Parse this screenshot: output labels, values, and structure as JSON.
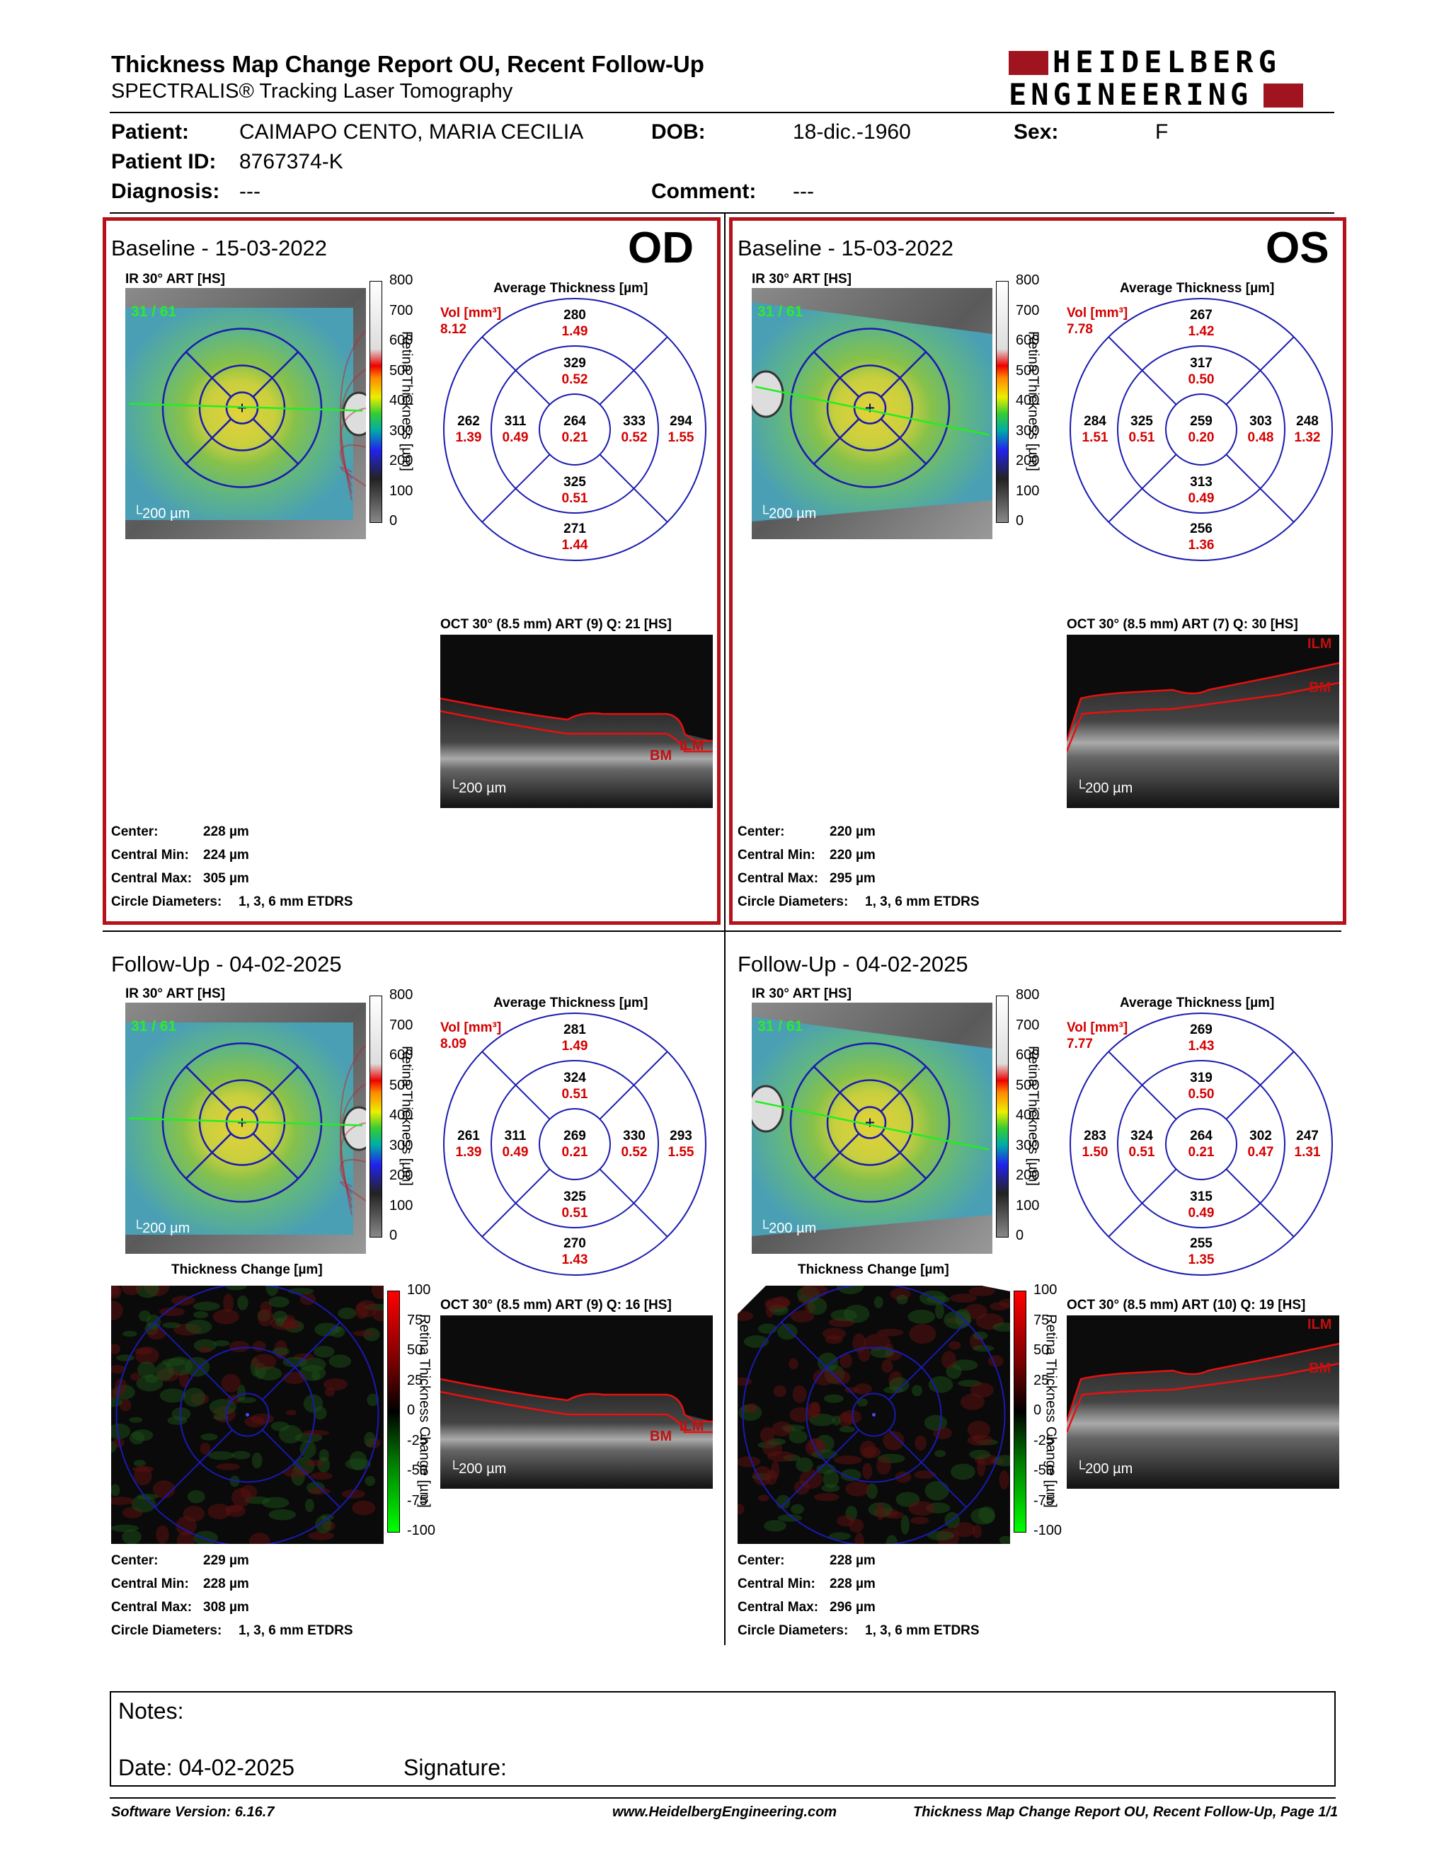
{
  "header": {
    "title": "Thickness Map Change Report OU, Recent Follow-Up",
    "subtitle": "SPECTRALIS® Tracking Laser Tomography",
    "logo_line1": "HEIDELBERG",
    "logo_line2": "ENGINEERING"
  },
  "patient": {
    "patient_label": "Patient:",
    "patient_value": "CAIMAPO CENTO, MARIA CECILIA",
    "dob_label": "DOB:",
    "dob_value": "18-dic.-1960",
    "sex_label": "Sex:",
    "sex_value": "F",
    "id_label": "Patient ID:",
    "id_value": "8767374-K",
    "diagnosis_label": "Diagnosis:",
    "diagnosis_value": "---",
    "comment_label": "Comment:",
    "comment_value": "---"
  },
  "panels": {
    "od_base": {
      "eye": "OD",
      "title": "Baseline - 15-03-2022",
      "ir_label": "IR 30° ART [HS]",
      "frame_count": "31 / 61",
      "scale": "200 µm",
      "avg_title": "Average Thickness [µm]",
      "vol_label": "Vol [mm³]",
      "vol": "8.12",
      "s": {
        "outer_sup": [
          "280",
          "1.49"
        ],
        "inner_sup": [
          "329",
          "0.52"
        ],
        "outer_left": [
          "262",
          "1.39"
        ],
        "inner_left": [
          "311",
          "0.49"
        ],
        "center": [
          "264",
          "0.21"
        ],
        "inner_right": [
          "333",
          "0.52"
        ],
        "outer_right": [
          "294",
          "1.55"
        ],
        "inner_inf": [
          "325",
          "0.51"
        ],
        "outer_inf": [
          "271",
          "1.44"
        ]
      },
      "oct_label": "OCT 30° (8.5 mm) ART (9) Q: 21 [HS]",
      "ilm": "ILM",
      "bm": "BM",
      "stats": {
        "center_label": "Center:",
        "center": "228 µm",
        "min_label": "Central Min:",
        "min": "224 µm",
        "max_label": "Central Max:",
        "max": "305 µm",
        "circ_label": "Circle Diameters:",
        "circ": "1, 3, 6 mm ETDRS"
      }
    },
    "os_base": {
      "eye": "OS",
      "title": "Baseline - 15-03-2022",
      "ir_label": "IR 30° ART [HS]",
      "frame_count": "31 / 61",
      "scale": "200 µm",
      "avg_title": "Average Thickness [µm]",
      "vol_label": "Vol [mm³]",
      "vol": "7.78",
      "s": {
        "outer_sup": [
          "267",
          "1.42"
        ],
        "inner_sup": [
          "317",
          "0.50"
        ],
        "outer_left": [
          "284",
          "1.51"
        ],
        "inner_left": [
          "325",
          "0.51"
        ],
        "center": [
          "259",
          "0.20"
        ],
        "inner_right": [
          "303",
          "0.48"
        ],
        "outer_right": [
          "248",
          "1.32"
        ],
        "inner_inf": [
          "313",
          "0.49"
        ],
        "outer_inf": [
          "256",
          "1.36"
        ]
      },
      "oct_label": "OCT 30° (8.5 mm) ART (7) Q: 30 [HS]",
      "ilm": "ILM",
      "bm": "BM",
      "stats": {
        "center_label": "Center:",
        "center": "220 µm",
        "min_label": "Central Min:",
        "min": "220 µm",
        "max_label": "Central Max:",
        "max": "295 µm",
        "circ_label": "Circle Diameters:",
        "circ": "1, 3, 6 mm ETDRS"
      }
    },
    "od_follow": {
      "title": "Follow-Up - 04-02-2025",
      "ir_label": "IR 30° ART [HS]",
      "frame_count": "31 / 61",
      "scale": "200 µm",
      "avg_title": "Average Thickness [µm]",
      "vol_label": "Vol [mm³]",
      "vol": "8.09",
      "s": {
        "outer_sup": [
          "281",
          "1.49"
        ],
        "inner_sup": [
          "324",
          "0.51"
        ],
        "outer_left": [
          "261",
          "1.39"
        ],
        "inner_left": [
          "311",
          "0.49"
        ],
        "center": [
          "269",
          "0.21"
        ],
        "inner_right": [
          "330",
          "0.52"
        ],
        "outer_right": [
          "293",
          "1.55"
        ],
        "inner_inf": [
          "325",
          "0.51"
        ],
        "outer_inf": [
          "270",
          "1.43"
        ]
      },
      "change_title": "Thickness Change [µm]",
      "oct_label": "OCT 30° (8.5 mm) ART (9) Q: 16 [HS]",
      "ilm": "ILM",
      "bm": "BM",
      "stats": {
        "center_label": "Center:",
        "center": "229 µm",
        "min_label": "Central Min:",
        "min": "228 µm",
        "max_label": "Central Max:",
        "max": "308 µm",
        "circ_label": "Circle Diameters:",
        "circ": "1, 3, 6 mm ETDRS"
      }
    },
    "os_follow": {
      "title": "Follow-Up - 04-02-2025",
      "ir_label": "IR 30° ART [HS]",
      "frame_count": "31 / 61",
      "scale": "200 µm",
      "avg_title": "Average Thickness [µm]",
      "vol_label": "Vol [mm³]",
      "vol": "7.77",
      "s": {
        "outer_sup": [
          "269",
          "1.43"
        ],
        "inner_sup": [
          "319",
          "0.50"
        ],
        "outer_left": [
          "283",
          "1.50"
        ],
        "inner_left": [
          "324",
          "0.51"
        ],
        "center": [
          "264",
          "0.21"
        ],
        "inner_right": [
          "302",
          "0.47"
        ],
        "outer_right": [
          "247",
          "1.31"
        ],
        "inner_inf": [
          "315",
          "0.49"
        ],
        "outer_inf": [
          "255",
          "1.35"
        ]
      },
      "change_title": "Thickness Change [µm]",
      "oct_label": "OCT 30° (8.5 mm) ART (10) Q: 19 [HS]",
      "ilm": "ILM",
      "bm": "BM",
      "stats": {
        "center_label": "Center:",
        "center": "228 µm",
        "min_label": "Central Min:",
        "min": "228 µm",
        "max_label": "Central Max:",
        "max": "296 µm",
        "circ_label": "Circle Diameters:",
        "circ": "1, 3, 6 mm ETDRS"
      }
    }
  },
  "thickness_scale": {
    "title": "Retina Thickness [µm]",
    "ticks": [
      "800",
      "700",
      "600",
      "500",
      "400",
      "300",
      "200",
      "100",
      "0"
    ]
  },
  "change_scale": {
    "title": "Retina Thickness Change [µm]",
    "ticks": [
      "100",
      "75",
      "50",
      "25",
      "0",
      "-25",
      "-50",
      "-75",
      "-100"
    ]
  },
  "notes": {
    "notes_label": "Notes:",
    "date_label": "Date: 04-02-2025",
    "signature_label": "Signature:"
  },
  "footer": {
    "software": "Software Version: 6.16.7",
    "website": "www.HeidelbergEngineering.com",
    "page": "Thickness Map Change Report OU, Recent Follow-Up, Page 1/1"
  },
  "colors": {
    "frame_red": "#b5121b",
    "grid_blue": "#1a1ab0",
    "value_red": "#d40000",
    "logo_red": "#a01420"
  }
}
